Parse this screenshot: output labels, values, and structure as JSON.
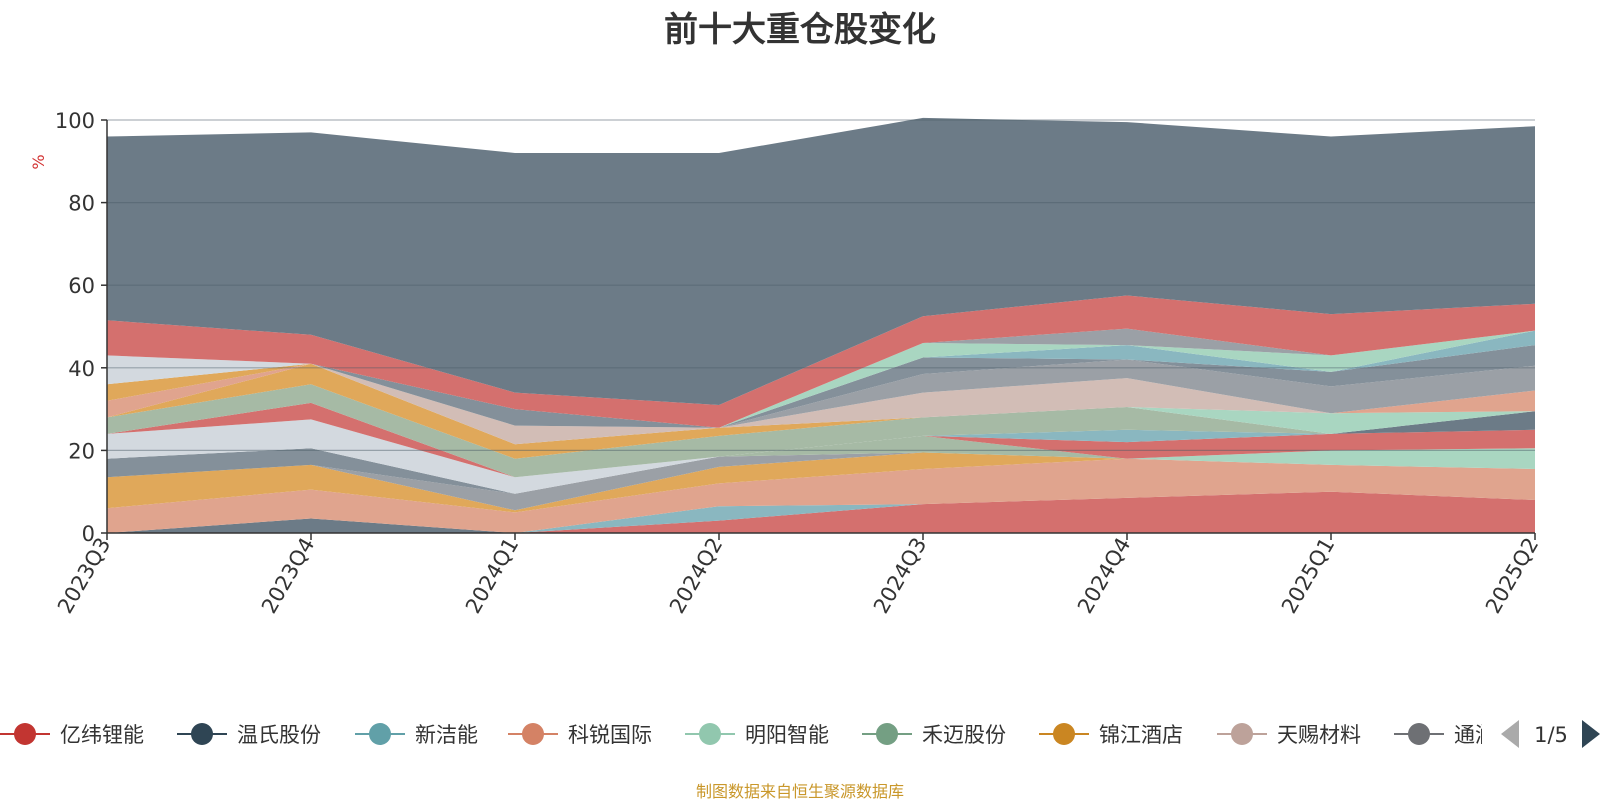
{
  "chart_data": {
    "type": "area",
    "title": "前十大重仓股变化",
    "ylabel": "%",
    "ylim": [
      0,
      100
    ],
    "yticks": [
      0,
      20,
      40,
      60,
      80,
      100
    ],
    "grid": true,
    "stacked": true,
    "categories": [
      "2023Q3",
      "2023Q4",
      "2024Q1",
      "2024Q2",
      "2024Q3",
      "2024Q4",
      "2025Q1",
      "2025Q2"
    ],
    "series": [
      {
        "color": "#d4706e",
        "values": [
          0,
          0,
          0,
          3,
          7,
          8.5,
          10,
          8
        ]
      },
      {
        "color": "#6c7b87",
        "values": [
          0,
          3.5,
          0,
          0,
          0,
          0,
          0,
          0
        ]
      },
      {
        "color": "#8ab7c0",
        "values": [
          0,
          0,
          0,
          3.5,
          0,
          0,
          0,
          0
        ]
      },
      {
        "color": "#e0a48e",
        "values": [
          6,
          7,
          5,
          5.5,
          8.5,
          9.5,
          6.5,
          7.5
        ]
      },
      {
        "color": "#e0a85a",
        "values": [
          7.5,
          6,
          0.5,
          4,
          4,
          0,
          0,
          0
        ]
      },
      {
        "color": "#a9d6c1",
        "values": [
          0,
          0,
          0,
          0,
          0,
          0,
          3.5,
          5
        ]
      },
      {
        "color": "#9ba0a6",
        "values": [
          0,
          0,
          4,
          2.5,
          0,
          0,
          0,
          0
        ]
      },
      {
        "color": "#84909a",
        "values": [
          4.5,
          4,
          0,
          0,
          0,
          0,
          0,
          0
        ]
      },
      {
        "color": "#a6baa5",
        "values": [
          0,
          0,
          0,
          0,
          4,
          0,
          0,
          0
        ]
      },
      {
        "color": "#d4706e",
        "values": [
          0,
          0,
          0,
          0,
          0,
          4,
          4,
          4.5
        ]
      },
      {
        "color": "#d3d9df",
        "values": [
          6,
          7,
          4,
          0,
          0,
          0,
          0,
          0
        ]
      },
      {
        "color": "#d4706e",
        "values": [
          0,
          4,
          0,
          0,
          0,
          0,
          0,
          0
        ]
      },
      {
        "color": "#8ab7c0",
        "values": [
          0,
          0,
          0,
          0,
          0,
          3,
          0,
          0
        ]
      },
      {
        "color": "#6c7b87",
        "values": [
          0,
          0,
          0,
          0,
          0,
          0,
          0,
          4.5
        ]
      },
      {
        "color": "#a6baa5",
        "values": [
          4,
          4.5,
          4.5,
          5,
          4.5,
          5.5,
          0,
          0
        ]
      },
      {
        "color": "#a9d6c1",
        "values": [
          0,
          0,
          0,
          0,
          0,
          0,
          5,
          0
        ]
      },
      {
        "color": "#e0a48e",
        "values": [
          0,
          0,
          0,
          0,
          0,
          0,
          0,
          5
        ]
      },
      {
        "color": "#e0a85a",
        "values": [
          0,
          5,
          3.5,
          2,
          0,
          0,
          0,
          0
        ]
      },
      {
        "color": "#d2bdb6",
        "values": [
          0,
          0,
          4.5,
          0,
          6,
          7,
          0,
          0
        ]
      },
      {
        "color": "#9ba0a6",
        "values": [
          0,
          0,
          0,
          0,
          4.5,
          4.5,
          6.5,
          6
        ]
      },
      {
        "color": "#e0a48e",
        "values": [
          4,
          0,
          0,
          0,
          0,
          0,
          0,
          0
        ]
      },
      {
        "color": "#84909a",
        "values": [
          0,
          0,
          4,
          0,
          4,
          0,
          3.5,
          5
        ]
      },
      {
        "color": "#8ab7c0",
        "values": [
          0,
          0,
          0,
          0,
          0,
          3.5,
          0,
          3.5
        ]
      },
      {
        "color": "#e0a85a",
        "values": [
          4,
          0,
          0,
          0,
          0,
          0,
          0,
          0
        ]
      },
      {
        "color": "#a9d6c1",
        "values": [
          0,
          0,
          0,
          0,
          3.5,
          0,
          4,
          0
        ]
      },
      {
        "color": "#9ba0a6",
        "values": [
          0,
          0,
          0,
          0,
          0,
          4,
          0,
          0
        ]
      },
      {
        "color": "#d3d9df",
        "values": [
          7,
          0,
          0,
          0,
          0,
          0,
          0,
          0
        ]
      },
      {
        "color": "#d4706e",
        "values": [
          8.5,
          7,
          4,
          5.5,
          6.5,
          8,
          10,
          6.5
        ]
      },
      {
        "color": "#6c7b87",
        "values": [
          44.5,
          49,
          58,
          61,
          48,
          42,
          43,
          43
        ]
      }
    ],
    "legend": {
      "position": "bottom",
      "entries": [
        {
          "name": "亿纬锂能",
          "color": "#c23531"
        },
        {
          "name": "温氏股份",
          "color": "#2f4554"
        },
        {
          "name": "新洁能",
          "color": "#61a0a8"
        },
        {
          "name": "科锐国际",
          "color": "#d48265"
        },
        {
          "name": "明阳智能",
          "color": "#91c7ae"
        },
        {
          "name": "禾迈股份",
          "color": "#749f83"
        },
        {
          "name": "锦江酒店",
          "color": "#ca8622"
        },
        {
          "name": "天赐材料",
          "color": "#bda29a"
        },
        {
          "name": "通润装备",
          "color": "#6e7074"
        }
      ],
      "page": "1/5"
    }
  },
  "footer": {
    "source": "制图数据来自恒生聚源数据库"
  }
}
